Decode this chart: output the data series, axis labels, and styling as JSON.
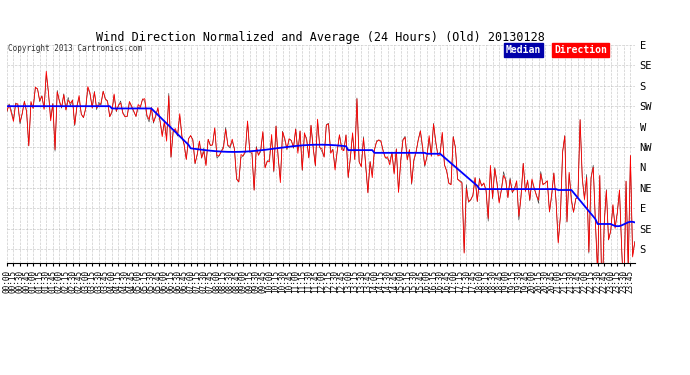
{
  "title": "Wind Direction Normalized and Average (24 Hours) (Old) 20130128",
  "copyright": "Copyright 2013 Cartronics.com",
  "ytick_labels": [
    "S",
    "SE",
    "E",
    "NE",
    "N",
    "NW",
    "W",
    "SW",
    "S",
    "SE",
    "E"
  ],
  "ytick_values": [
    360,
    315,
    270,
    225,
    180,
    135,
    90,
    45,
    0,
    -45,
    -90
  ],
  "ylim": [
    110,
    390
  ],
  "background_color": "#ffffff",
  "grid_color": "#aaaaaa",
  "line_color_red": "#ff0000",
  "line_color_blue": "#0000ff",
  "line_color_black": "#000000",
  "xtick_interval": 3,
  "n_points": 288
}
